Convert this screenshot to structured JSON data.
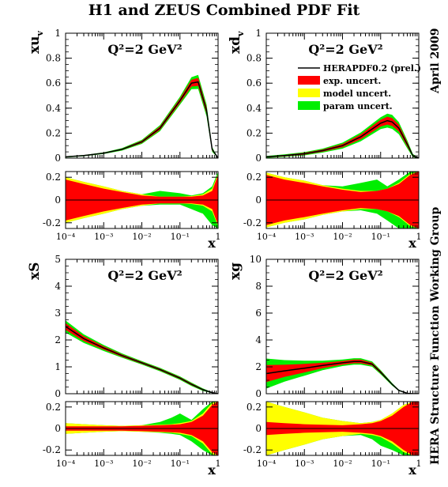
{
  "title": "H1 and ZEUS Combined PDF Fit",
  "side_label_top": "April 2009",
  "side_label_bottom": "HERA Structure Function Working Group",
  "colors": {
    "central": "#000000",
    "exp": "#ff0000",
    "model": "#ffff00",
    "param": "#00ee00",
    "axis": "#000000"
  },
  "legend": {
    "central": "HERAPDF0.2 (prel.)",
    "exp": "exp. uncert.",
    "model": "model uncert.",
    "param": "param uncert."
  },
  "chart_data": [
    {
      "id": "xuv",
      "type": "line",
      "ylabel": "xu",
      "ylabel_sub": "v",
      "xlabel": "x",
      "annotation": "Q²=2 GeV²",
      "xscale": "log",
      "xlim": [
        0.0001,
        1
      ],
      "ylim": [
        0,
        1
      ],
      "yticks": [
        "0",
        "0.2",
        "0.4",
        "0.6",
        "0.8",
        "1"
      ],
      "x": [
        0.0001,
        0.0003,
        0.001,
        0.003,
        0.01,
        0.03,
        0.1,
        0.2,
        0.3,
        0.5,
        0.7,
        1.0
      ],
      "central": [
        0.01,
        0.02,
        0.04,
        0.07,
        0.13,
        0.24,
        0.46,
        0.6,
        0.61,
        0.38,
        0.07,
        0.0
      ],
      "band_width": [
        0.003,
        0.003,
        0.004,
        0.006,
        0.01,
        0.015,
        0.02,
        0.03,
        0.035,
        0.03,
        0.012,
        0.0
      ],
      "ratio_plot": {
        "ylim": [
          -0.25,
          0.25
        ],
        "yticks": [
          "-0.2",
          "0",
          "0.2"
        ],
        "xticks": [
          "10⁻⁴",
          "10⁻³",
          "10⁻²",
          "10⁻¹",
          "1"
        ],
        "x": [
          0.0001,
          0.0003,
          0.001,
          0.003,
          0.01,
          0.03,
          0.1,
          0.2,
          0.4,
          0.7,
          1.0
        ],
        "exp": [
          0.18,
          0.14,
          0.1,
          0.07,
          0.04,
          0.03,
          0.03,
          0.03,
          0.04,
          0.08,
          0.22
        ],
        "model": [
          0.2,
          0.16,
          0.12,
          0.08,
          0.05,
          0.03,
          0.03,
          0.035,
          0.05,
          0.1,
          0.23
        ],
        "param_up": [
          0.2,
          0.16,
          0.12,
          0.08,
          0.05,
          0.08,
          0.06,
          0.04,
          0.06,
          0.12,
          0.25
        ],
        "param_dn": [
          0.2,
          0.16,
          0.12,
          0.08,
          0.05,
          0.04,
          0.04,
          0.08,
          0.12,
          0.22,
          0.25
        ]
      }
    },
    {
      "id": "xdv",
      "type": "line",
      "ylabel": "xd",
      "ylabel_sub": "v",
      "xlabel": "x",
      "annotation": "Q²=2 GeV²",
      "xscale": "log",
      "xlim": [
        0.0001,
        1
      ],
      "ylim": [
        0,
        1
      ],
      "yticks": [
        "0",
        "0.2",
        "0.4",
        "0.6",
        "0.8",
        "1"
      ],
      "x": [
        0.0001,
        0.0003,
        0.001,
        0.003,
        0.01,
        0.03,
        0.1,
        0.15,
        0.2,
        0.3,
        0.5,
        0.7,
        1.0
      ],
      "central": [
        0.01,
        0.02,
        0.035,
        0.06,
        0.1,
        0.17,
        0.28,
        0.3,
        0.29,
        0.24,
        0.11,
        0.02,
        0.0
      ],
      "band_width": [
        0.005,
        0.006,
        0.008,
        0.01,
        0.015,
        0.022,
        0.03,
        0.035,
        0.035,
        0.03,
        0.02,
        0.008,
        0.0
      ],
      "ratio_plot": {
        "ylim": [
          -0.25,
          0.25
        ],
        "yticks": [
          "-0.2",
          "0",
          "0.2"
        ],
        "xticks": [
          "10⁻⁴",
          "10⁻³",
          "10⁻²",
          "10⁻¹",
          "1"
        ],
        "x": [
          0.0001,
          0.0003,
          0.001,
          0.003,
          0.01,
          0.03,
          0.08,
          0.15,
          0.3,
          0.6,
          1.0
        ],
        "exp": [
          0.22,
          0.18,
          0.15,
          0.12,
          0.09,
          0.07,
          0.08,
          0.1,
          0.14,
          0.22,
          0.25
        ],
        "model": [
          0.24,
          0.2,
          0.17,
          0.13,
          0.1,
          0.08,
          0.08,
          0.1,
          0.15,
          0.23,
          0.25
        ],
        "param_up": [
          0.24,
          0.2,
          0.17,
          0.13,
          0.12,
          0.15,
          0.18,
          0.12,
          0.18,
          0.25,
          0.25
        ],
        "param_dn": [
          0.24,
          0.2,
          0.17,
          0.13,
          0.1,
          0.09,
          0.12,
          0.18,
          0.25,
          0.25,
          0.25
        ]
      }
    },
    {
      "id": "xS",
      "type": "line",
      "ylabel": "xS",
      "ylabel_sub": "",
      "xlabel": "x",
      "annotation": "Q²=2 GeV²",
      "xscale": "log",
      "xlim": [
        0.0001,
        1
      ],
      "ylim": [
        0,
        5
      ],
      "yticks": [
        "0",
        "1",
        "2",
        "3",
        "4",
        "5"
      ],
      "x": [
        0.0001,
        0.0003,
        0.001,
        0.003,
        0.01,
        0.03,
        0.1,
        0.2,
        0.4,
        0.7,
        1.0
      ],
      "central": [
        2.5,
        2.05,
        1.7,
        1.42,
        1.15,
        0.9,
        0.58,
        0.35,
        0.15,
        0.04,
        0.0
      ],
      "band_width": [
        0.14,
        0.1,
        0.07,
        0.05,
        0.04,
        0.04,
        0.04,
        0.04,
        0.03,
        0.01,
        0.0
      ],
      "ratio_plot": {
        "ylim": [
          -0.25,
          0.25
        ],
        "yticks": [
          "-0.2",
          "0",
          "0.2"
        ],
        "xticks": [
          "10⁻⁴",
          "10⁻³",
          "10⁻²",
          "10⁻¹",
          "1"
        ],
        "x": [
          0.0001,
          0.0003,
          0.001,
          0.003,
          0.01,
          0.03,
          0.06,
          0.1,
          0.2,
          0.4,
          0.7,
          1.0
        ],
        "exp": [
          0.02,
          0.02,
          0.02,
          0.02,
          0.025,
          0.03,
          0.035,
          0.04,
          0.06,
          0.12,
          0.22,
          0.25
        ],
        "model": [
          0.05,
          0.04,
          0.03,
          0.025,
          0.03,
          0.035,
          0.04,
          0.05,
          0.07,
          0.14,
          0.24,
          0.25
        ],
        "param_up": [
          0.05,
          0.04,
          0.03,
          0.025,
          0.03,
          0.06,
          0.1,
          0.14,
          0.08,
          0.18,
          0.25,
          0.25
        ],
        "param_dn": [
          0.05,
          0.04,
          0.03,
          0.025,
          0.03,
          0.04,
          0.05,
          0.06,
          0.12,
          0.2,
          0.25,
          0.25
        ]
      }
    },
    {
      "id": "xg",
      "type": "line",
      "ylabel": "xg",
      "ylabel_sub": "",
      "xlabel": "x",
      "annotation": "Q²=2 GeV²",
      "xscale": "log",
      "xlim": [
        0.0001,
        1
      ],
      "ylim": [
        0,
        10
      ],
      "yticks": [
        "0",
        "2",
        "4",
        "6",
        "8",
        "10"
      ],
      "x": [
        0.0001,
        0.0003,
        0.001,
        0.003,
        0.01,
        0.02,
        0.03,
        0.06,
        0.1,
        0.2,
        0.3,
        0.5,
        0.7,
        1.0
      ],
      "central": [
        1.5,
        1.7,
        1.9,
        2.1,
        2.3,
        2.4,
        2.4,
        2.2,
        1.6,
        0.7,
        0.25,
        0.03,
        0.0,
        0.0
      ],
      "band_width": [
        0.7,
        0.5,
        0.35,
        0.22,
        0.15,
        0.15,
        0.15,
        0.12,
        0.1,
        0.06,
        0.03,
        0.01,
        0.0,
        0.0
      ],
      "ratio_plot": {
        "ylim": [
          -0.25,
          0.25
        ],
        "yticks": [
          "-0.2",
          "0",
          "0.2"
        ],
        "xticks": [
          "10⁻⁴",
          "10⁻³",
          "10⁻²",
          "10⁻¹",
          "1"
        ],
        "x": [
          0.0001,
          0.0003,
          0.001,
          0.003,
          0.01,
          0.03,
          0.06,
          0.1,
          0.2,
          0.4,
          0.7,
          1.0
        ],
        "exp": [
          0.06,
          0.05,
          0.04,
          0.035,
          0.03,
          0.04,
          0.05,
          0.07,
          0.12,
          0.2,
          0.25,
          0.25
        ],
        "model": [
          0.25,
          0.2,
          0.15,
          0.1,
          0.07,
          0.05,
          0.06,
          0.08,
          0.14,
          0.22,
          0.25,
          0.25
        ],
        "param_up": [
          0.25,
          0.2,
          0.15,
          0.1,
          0.07,
          0.05,
          0.06,
          0.08,
          0.14,
          0.22,
          0.25,
          0.25
        ],
        "param_dn": [
          0.25,
          0.2,
          0.15,
          0.1,
          0.07,
          0.06,
          0.1,
          0.16,
          0.2,
          0.25,
          0.25,
          0.25
        ]
      }
    }
  ]
}
